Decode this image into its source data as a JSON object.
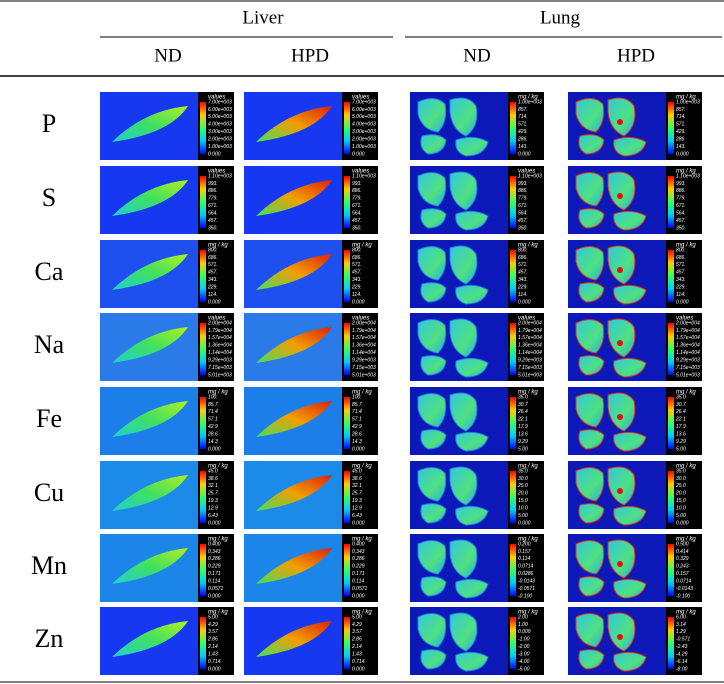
{
  "header": {
    "groups": [
      "Liver",
      "Lung"
    ],
    "columns": [
      "ND",
      "HPD",
      "ND",
      "HPD"
    ]
  },
  "rows": [
    {
      "label": "P",
      "cells": [
        {
          "unit": "values",
          "ticks": [
            "7.00e+003",
            "6.00e+003",
            "5.00e+003",
            "4.00e+003",
            "3.00e+003",
            "2.00e+003",
            "1.00e+003",
            "0.000"
          ]
        },
        {
          "unit": "values",
          "ticks": [
            "7.00e+003",
            "6.00e+003",
            "5.00e+003",
            "4.00e+003",
            "3.00e+003",
            "2.00e+003",
            "1.00e+003",
            "0.000"
          ]
        },
        {
          "unit": "mg / kg",
          "ticks": [
            "1.00e+003",
            "857.",
            "714.",
            "571.",
            "429.",
            "286.",
            "143.",
            "0.000"
          ]
        },
        {
          "unit": "mg / kg",
          "ticks": [
            "1.00e+003",
            "857.",
            "714.",
            "571.",
            "429.",
            "286.",
            "143.",
            "0.000"
          ]
        }
      ]
    },
    {
      "label": "S",
      "cells": [
        {
          "unit": "values",
          "ticks": [
            "1.10e+003",
            "993.",
            "886.",
            "779.",
            "671.",
            "564.",
            "457.",
            "350."
          ]
        },
        {
          "unit": "values",
          "ticks": [
            "1.10e+003",
            "993.",
            "886.",
            "779.",
            "671.",
            "564.",
            "457.",
            "350."
          ]
        },
        {
          "unit": "values",
          "ticks": [
            "1.10e+003",
            "993.",
            "886.",
            "779.",
            "671.",
            "564.",
            "457.",
            "350."
          ]
        },
        {
          "unit": "mg / kg",
          "ticks": [
            "1.10e+003",
            "993.",
            "886.",
            "779.",
            "671.",
            "564.",
            "457.",
            "350."
          ]
        }
      ]
    },
    {
      "label": "Ca",
      "cells": [
        {
          "unit": "mg / kg",
          "ticks": [
            "800.",
            "686.",
            "571.",
            "457.",
            "343.",
            "229.",
            "114.",
            "0.000"
          ]
        },
        {
          "unit": "mg / kg",
          "ticks": [
            "800.",
            "686.",
            "571.",
            "457.",
            "343.",
            "229.",
            "114.",
            "0.000"
          ]
        },
        {
          "unit": "mg / kg",
          "ticks": [
            "800.",
            "686.",
            "571.",
            "457.",
            "343.",
            "229.",
            "114.",
            "0.000"
          ]
        },
        {
          "unit": "mg / kg",
          "ticks": [
            "800.",
            "686.",
            "571.",
            "457.",
            "343.",
            "229.",
            "114.",
            "0.000"
          ]
        }
      ]
    },
    {
      "label": "Na",
      "cells": [
        {
          "unit": "values",
          "ticks": [
            "2.00e+004",
            "1.79e+004",
            "1.57e+004",
            "1.36e+004",
            "1.14e+004",
            "9.29e+003",
            "7.15e+003",
            "5.01e+003"
          ]
        },
        {
          "unit": "values",
          "ticks": [
            "2.00e+004",
            "1.79e+004",
            "1.57e+004",
            "1.36e+004",
            "1.14e+004",
            "9.29e+003",
            "7.15e+003",
            "5.01e+003"
          ]
        },
        {
          "unit": "values",
          "ticks": [
            "2.00e+004",
            "1.79e+004",
            "1.57e+004",
            "1.36e+004",
            "1.14e+004",
            "9.29e+003",
            "7.15e+003",
            "5.01e+003"
          ]
        },
        {
          "unit": "values",
          "ticks": [
            "2.00e+004",
            "1.79e+004",
            "1.57e+004",
            "1.36e+004",
            "1.14e+004",
            "9.29e+003",
            "7.15e+003",
            "5.01e+003"
          ]
        }
      ]
    },
    {
      "label": "Fe",
      "cells": [
        {
          "unit": "mg / kg",
          "ticks": [
            "100.",
            "85.7",
            "71.4",
            "57.1",
            "42.9",
            "28.6",
            "14.3",
            "0.000"
          ]
        },
        {
          "unit": "mg / kg",
          "ticks": [
            "100.",
            "85.7",
            "71.4",
            "57.1",
            "42.9",
            "28.6",
            "14.3",
            "0.000"
          ]
        },
        {
          "unit": "mg / kg",
          "ticks": [
            "35.0",
            "30.7",
            "26.4",
            "22.1",
            "17.9",
            "13.6",
            "9.29",
            "5.00"
          ]
        },
        {
          "unit": "mg / kg",
          "ticks": [
            "35.0",
            "30.7",
            "26.4",
            "22.1",
            "17.9",
            "13.6",
            "9.29",
            "5.00"
          ]
        }
      ]
    },
    {
      "label": "Cu",
      "cells": [
        {
          "unit": "mg / kg",
          "ticks": [
            "45.0",
            "38.6",
            "32.1",
            "25.7",
            "19.3",
            "12.9",
            "6.43",
            "0.000"
          ]
        },
        {
          "unit": "mg / kg",
          "ticks": [
            "45.0",
            "38.6",
            "32.1",
            "25.7",
            "19.3",
            "12.9",
            "6.43",
            "0.000"
          ]
        },
        {
          "unit": "mg / kg",
          "ticks": [
            "35.0",
            "30.0",
            "25.0",
            "20.0",
            "15.0",
            "10.0",
            "5.00",
            "0.000"
          ]
        },
        {
          "unit": "mg / kg",
          "ticks": [
            "35.0",
            "30.0",
            "25.0",
            "20.0",
            "15.0",
            "10.0",
            "5.00",
            "0.000"
          ]
        }
      ]
    },
    {
      "label": "Mn",
      "cells": [
        {
          "unit": "mg / kg",
          "ticks": [
            "0.400",
            "0.343",
            "0.286",
            "0.229",
            "0.171",
            "0.114",
            "0.0571",
            "0.000"
          ]
        },
        {
          "unit": "mg / kg",
          "ticks": [
            "0.400",
            "0.343",
            "0.286",
            "0.229",
            "0.171",
            "0.114",
            "0.0571",
            "0.000"
          ]
        },
        {
          "unit": "mg / kg",
          "ticks": [
            "0.200",
            "0.157",
            "0.114",
            "0.0714",
            "0.0286",
            "-0.0143",
            "-0.0571",
            "-0.100"
          ]
        },
        {
          "unit": "mg / kg",
          "ticks": [
            "0.500",
            "0.414",
            "0.329",
            "0.243",
            "0.157",
            "0.0714",
            "-0.0143",
            "-0.100"
          ]
        }
      ]
    },
    {
      "label": "Zn",
      "cells": [
        {
          "unit": "mg / kg",
          "ticks": [
            "5.00",
            "4.29",
            "3.57",
            "2.86",
            "2.14",
            "1.43",
            "0.714",
            "0.000"
          ]
        },
        {
          "unit": "mg / kg",
          "ticks": [
            "5.00",
            "4.29",
            "3.57",
            "2.86",
            "2.14",
            "1.43",
            "0.714",
            "0.000"
          ]
        },
        {
          "unit": "mg / kg",
          "ticks": [
            "2.00",
            "1.00",
            "0.000",
            "-1.00",
            "-2.00",
            "-3.00",
            "-4.00",
            "-5.00"
          ]
        },
        {
          "unit": "mg / kg",
          "ticks": [
            "6.00",
            "3.14",
            "1.29",
            "-0.571",
            "-2.43",
            "-4.29",
            "-6.14",
            "-8.00"
          ]
        }
      ]
    }
  ]
}
